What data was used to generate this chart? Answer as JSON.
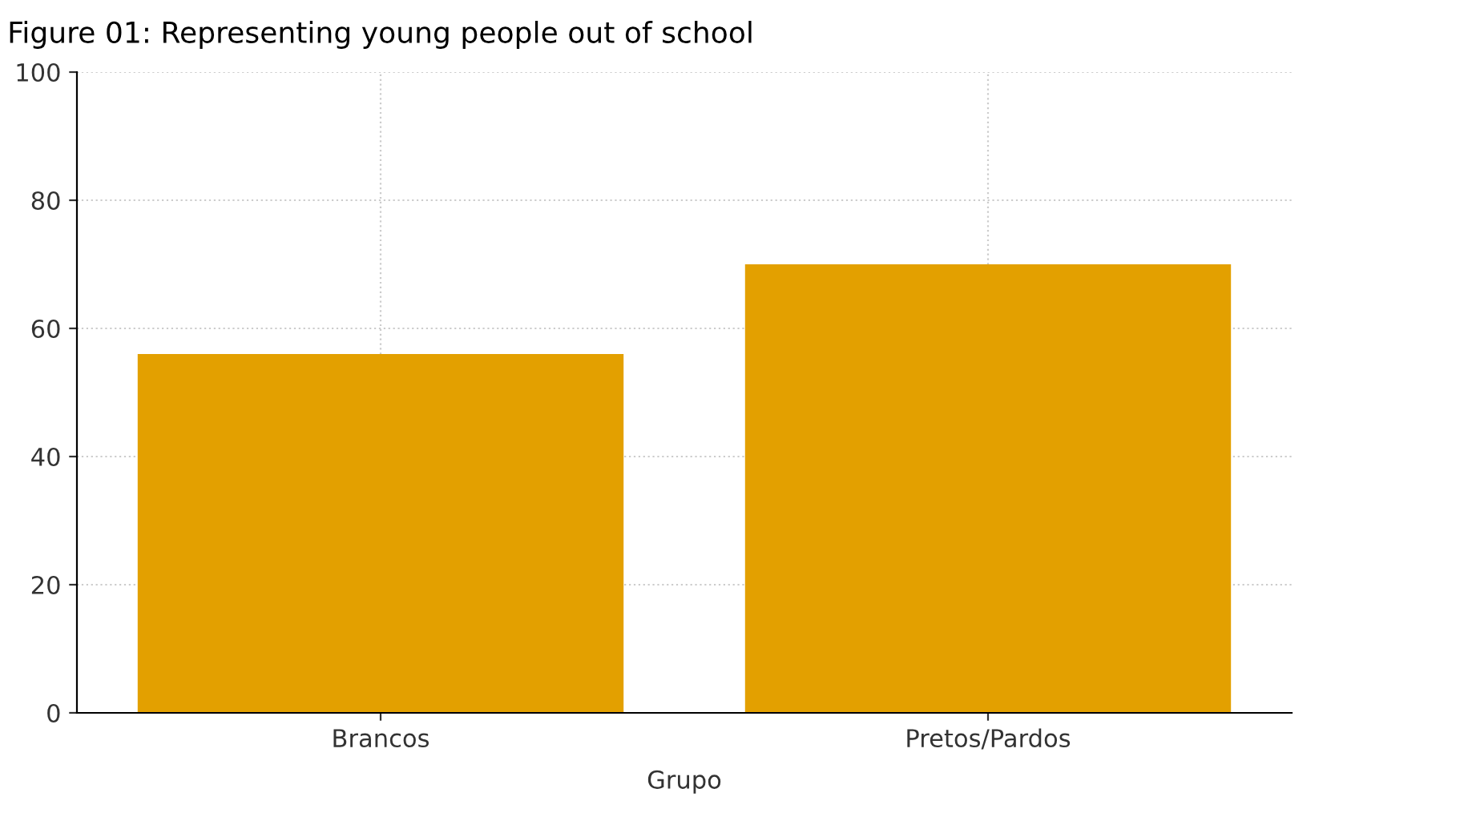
{
  "chart_data": {
    "type": "bar",
    "title": "Figure 01: Representing young people out of school",
    "xlabel": "Grupo",
    "categories": [
      "Brancos",
      "Pretos/Pardos"
    ],
    "values": [
      56,
      70
    ],
    "color": "#e3a000",
    "ylim": [
      0,
      100
    ],
    "yticks": [
      0,
      20,
      40,
      60,
      80,
      100
    ],
    "grid": true
  }
}
